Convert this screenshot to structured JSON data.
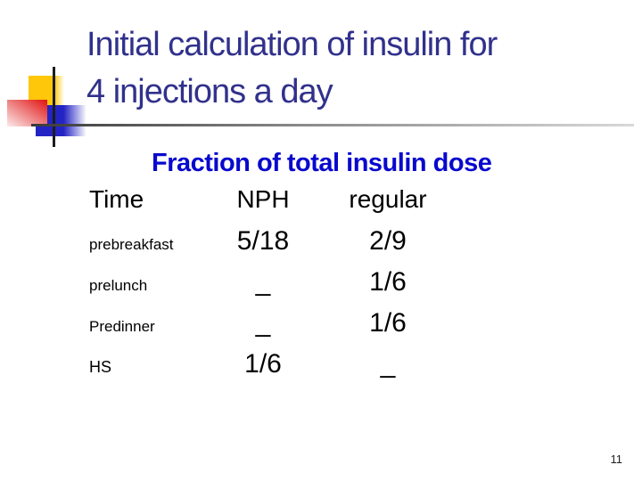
{
  "slide": {
    "title_line1": "Initial calculation of insulin for",
    "title_line2": "4 injections a day",
    "page_number": "11"
  },
  "table": {
    "heading": "Fraction of total insulin dose",
    "columns": [
      "Time",
      "NPH",
      "regular"
    ],
    "rows": [
      {
        "time": "prebreakfast",
        "nph": "5/18",
        "regular": "2/9"
      },
      {
        "time": "prelunch",
        "nph": "_",
        "regular": "1/6"
      },
      {
        "time": "Predinner",
        "nph": "_",
        "regular": "1/6"
      },
      {
        "time": "HS",
        "nph": "1/6",
        "regular": "_"
      }
    ]
  },
  "colors": {
    "title_navy": "#31318c",
    "heading_blue": "#0808ce",
    "body_text": "#000000",
    "accent_yellow": "#ffc709",
    "accent_red": "#e11212",
    "accent_blue": "#2424c4",
    "rule_dark": "#3b3b3b",
    "rule_light": "#d9d9d9"
  }
}
